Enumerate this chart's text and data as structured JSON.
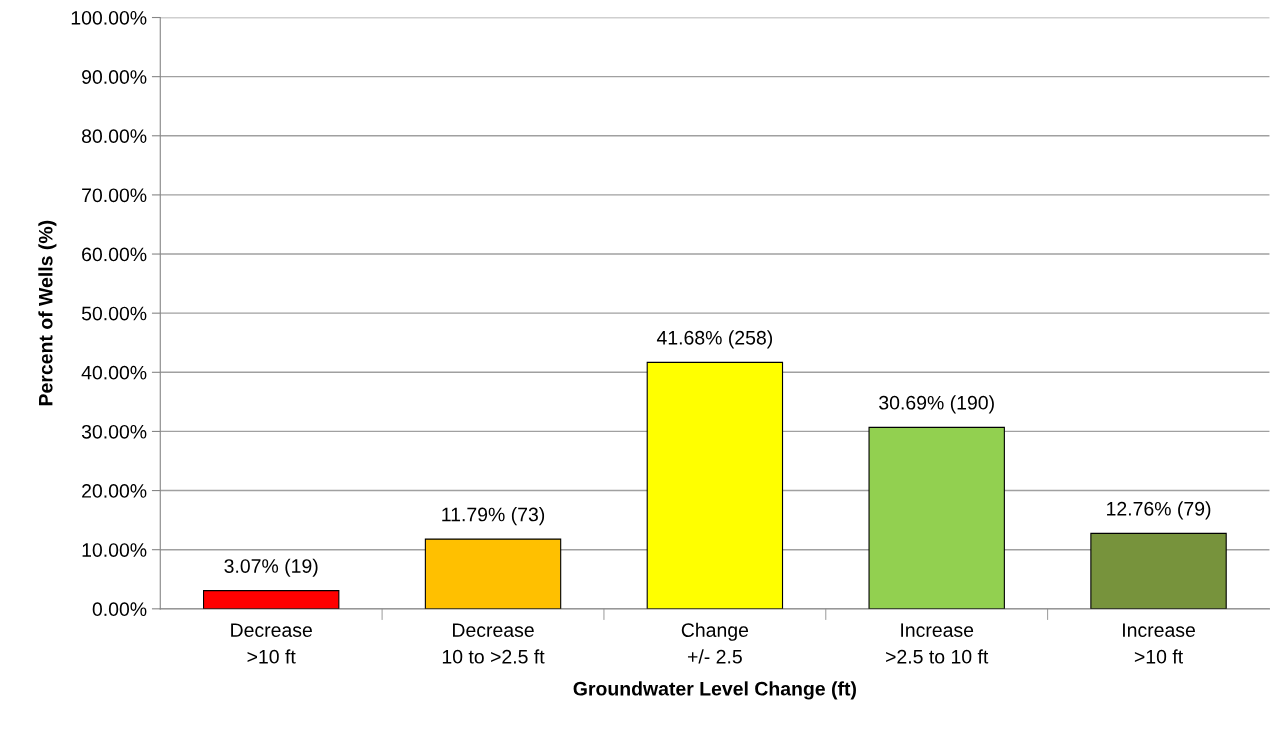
{
  "chart_data": {
    "type": "bar",
    "xlabel": "Groundwater Level Change (ft)",
    "ylabel": "Percent of Wells (%)",
    "categories": [
      "Decrease\n>10 ft",
      "Decrease\n10 to >2.5 ft",
      "Change\n+/- 2.5",
      "Increase\n>2.5 to 10 ft",
      "Increase\n>10 ft"
    ],
    "values": [
      3.07,
      11.79,
      41.68,
      30.69,
      12.76
    ],
    "colors": [
      "#ff0000",
      "#ffc000",
      "#ffff00",
      "#92d050",
      "#77933c"
    ],
    "value_labels": [
      "3.07% (19)",
      "11.79% (73)",
      "41.68% (258)",
      "30.69% (190)",
      "12.76% (79)"
    ],
    "ylim": [
      0,
      100
    ],
    "yticks": [
      {
        "value": 0,
        "label": "0.00%"
      },
      {
        "value": 10,
        "label": "10.00%"
      },
      {
        "value": 20,
        "label": "20.00%"
      },
      {
        "value": 30,
        "label": "30.00%"
      },
      {
        "value": 40,
        "label": "40.00%"
      },
      {
        "value": 50,
        "label": "50.00%"
      },
      {
        "value": 60,
        "label": "60.00%"
      },
      {
        "value": 70,
        "label": "70.00%"
      },
      {
        "value": 80,
        "label": "80.00%"
      },
      {
        "value": 90,
        "label": "90.00%"
      },
      {
        "value": 100,
        "label": "100.00%"
      }
    ],
    "grid": "y",
    "legend": false
  }
}
